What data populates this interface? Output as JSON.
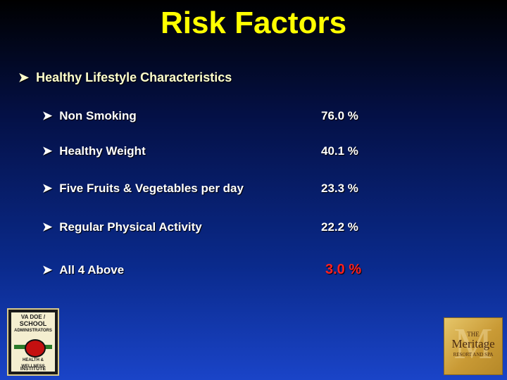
{
  "slide": {
    "title": "Risk Factors",
    "main_bullet": "Healthy Lifestyle Characteristics",
    "items": [
      {
        "label": "Non Smoking",
        "value": "76.0 %"
      },
      {
        "label": "Healthy Weight",
        "value": "40.1 %"
      },
      {
        "label": "Five Fruits & Vegetables per day",
        "value": "23.3 %"
      },
      {
        "label": "Regular Physical Activity",
        "value": "22.2 %"
      },
      {
        "label": "All 4 Above",
        "value": "3.0 %"
      }
    ]
  },
  "logos": {
    "left": {
      "lines": [
        "VA DOE / ",
        "SCHOOL",
        "ADMINISTRATORS",
        "HEALTH & WELLNESS",
        "INSTITUTE"
      ]
    },
    "right": {
      "line1": "THE",
      "line2": "Meritage",
      "line3": "RESORT AND SPA"
    }
  },
  "colors": {
    "title": "#ffff00",
    "highlight_value": "#ff2020",
    "text": "#ffffff"
  }
}
